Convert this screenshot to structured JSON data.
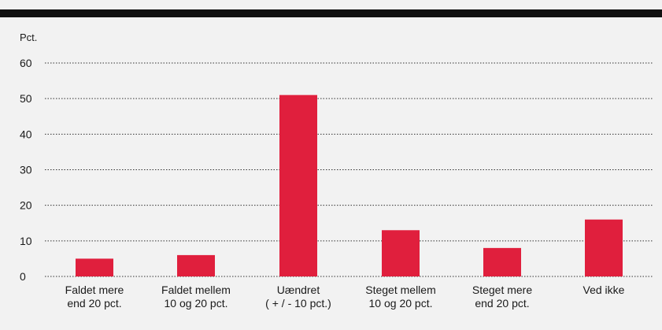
{
  "chart_data": {
    "type": "bar",
    "ylabel": "Pct.",
    "ylim": [
      0,
      60
    ],
    "yticks": [
      0,
      10,
      20,
      30,
      40,
      50,
      60
    ],
    "grid": true,
    "categories": [
      [
        "Faldet mere",
        "end 20 pct."
      ],
      [
        "Faldet mellem",
        "10 og 20 pct."
      ],
      [
        "Uændret",
        "( + / - 10 pct.)"
      ],
      [
        "Steget mellem",
        "10 og 20 pct."
      ],
      [
        "Steget mere",
        "end 20 pct."
      ],
      [
        "Ved ikke"
      ]
    ],
    "values": [
      5,
      6,
      51,
      13,
      8,
      16
    ],
    "bar_color": "#e01f3d",
    "grid_color": "#333333"
  }
}
